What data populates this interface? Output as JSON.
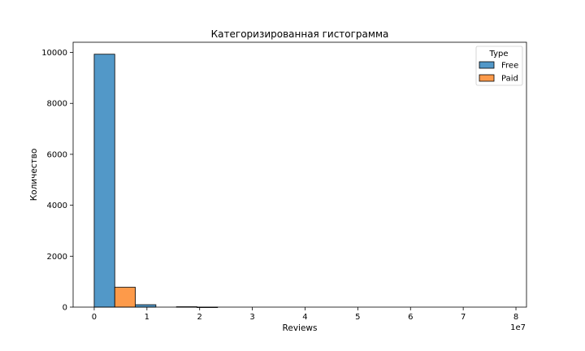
{
  "chart_data": {
    "type": "bar",
    "title": "Категоризированная гистограмма",
    "xlabel": "Reviews",
    "ylabel": "Количество",
    "x_offset_label": "1e7",
    "xlim": [
      -0.4,
      8.2
    ],
    "ylim": [
      0,
      10400
    ],
    "x_ticks": [
      0,
      1,
      2,
      3,
      4,
      5,
      6,
      7,
      8
    ],
    "y_ticks": [
      0,
      2000,
      4000,
      6000,
      8000,
      10000
    ],
    "grid": false,
    "legend": {
      "title": "Type",
      "placement": "top-right"
    },
    "series": [
      {
        "name": "Free",
        "color": "#5298c8",
        "bins": [
          {
            "x0": 0.0,
            "x1": 0.39,
            "value": 9930
          },
          {
            "x0": 0.78,
            "x1": 1.17,
            "value": 95
          },
          {
            "x0": 1.56,
            "x1": 1.95,
            "value": 15
          },
          {
            "x0": 1.95,
            "x1": 2.34,
            "value": 2
          }
        ]
      },
      {
        "name": "Paid",
        "color": "#fd9a4a",
        "bins": [
          {
            "x0": 0.39,
            "x1": 0.78,
            "value": 780
          }
        ]
      }
    ]
  }
}
